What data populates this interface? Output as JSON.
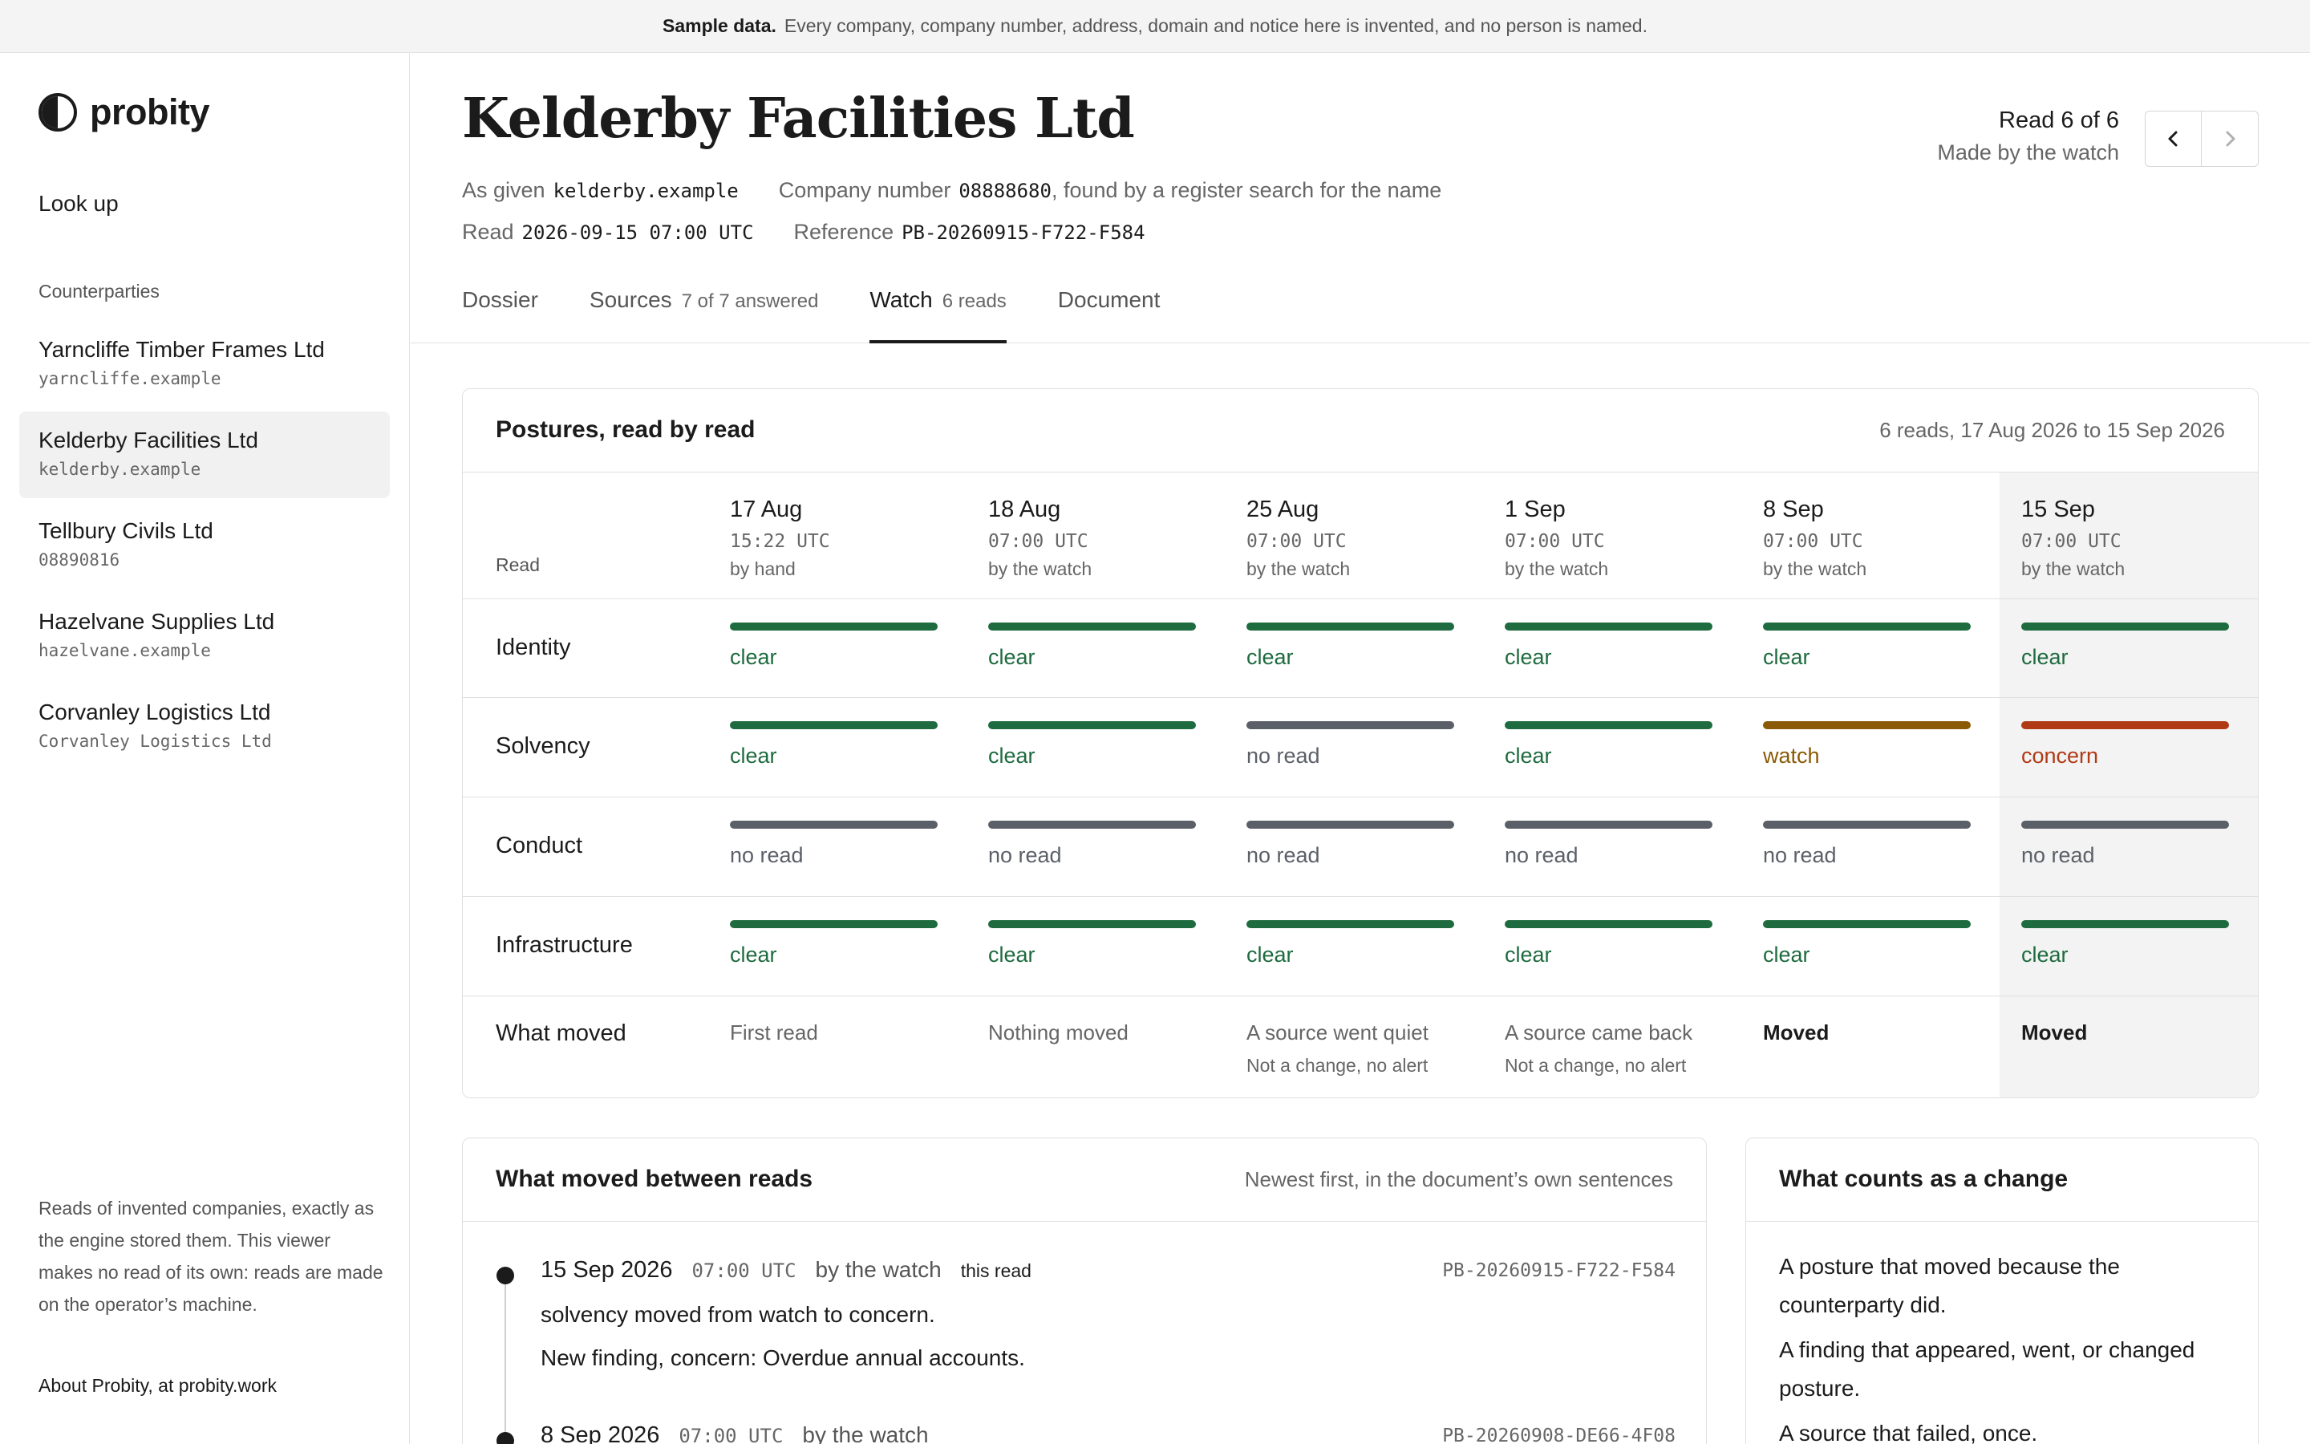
{
  "banner": {
    "label": "Sample data.",
    "text": "Every company, company number, address, domain and notice here is invented, and no person is named."
  },
  "sidebar": {
    "logo_text": "probity",
    "lookup_label": "Look up",
    "counterparties_heading": "Counterparties",
    "counterparties": [
      {
        "name": "Yarncliffe Timber Frames Ltd",
        "sub": "yarncliffe.example",
        "active": false
      },
      {
        "name": "Kelderby Facilities Ltd",
        "sub": "kelderby.example",
        "active": true
      },
      {
        "name": "Tellbury Civils Ltd",
        "sub": "08890816",
        "active": false
      },
      {
        "name": "Hazelvane Supplies Ltd",
        "sub": "hazelvane.example",
        "active": false
      },
      {
        "name": "Corvanley Logistics Ltd",
        "sub": "Corvanley Logistics Ltd",
        "active": false
      }
    ],
    "note": "Reads of invented companies, exactly as the engine stored them. This viewer makes no read of its own: reads are made on the operator’s machine.",
    "about_link": "About Probity, at probity.work"
  },
  "header": {
    "title": "Kelderby Facilities Ltd",
    "as_given_label": "As given",
    "as_given_value": "kelderby.example",
    "company_number_label": "Company number",
    "company_number_value": "08888680",
    "company_number_note": ", found by a register search for the name",
    "read_label": "Read",
    "read_value": "2026-09-15 07:00 UTC",
    "reference_label": "Reference",
    "reference_value": "PB-20260915-F722-F584",
    "read_status": "Read 6 of 6",
    "made_by": "Made by the watch",
    "prev_icon": "chevron-left-icon",
    "next_icon": "chevron-right-icon"
  },
  "tabs": [
    {
      "label": "Dossier",
      "count": "",
      "active": false
    },
    {
      "label": "Sources",
      "count": "7 of 7 answered",
      "active": false
    },
    {
      "label": "Watch",
      "count": "6 reads",
      "active": true
    },
    {
      "label": "Document",
      "count": "",
      "active": false
    }
  ],
  "postures": {
    "title": "Postures, read by read",
    "range": "6 reads, 17 Aug 2026 to 15 Sep 2026",
    "read_row_label": "Read",
    "reads": [
      {
        "date": "17 Aug",
        "time": "15:22 UTC",
        "by": "by hand"
      },
      {
        "date": "18 Aug",
        "time": "07:00 UTC",
        "by": "by the watch"
      },
      {
        "date": "25 Aug",
        "time": "07:00 UTC",
        "by": "by the watch"
      },
      {
        "date": "1 Sep",
        "time": "07:00 UTC",
        "by": "by the watch"
      },
      {
        "date": "8 Sep",
        "time": "07:00 UTC",
        "by": "by the watch"
      },
      {
        "date": "15 Sep",
        "time": "07:00 UTC",
        "by": "by the watch"
      }
    ],
    "status_colors": {
      "clear": "#1e6b3f",
      "no read": "#5b5f68",
      "watch": "#8a5a06",
      "concern": "#b03a16"
    },
    "rows": [
      {
        "label": "Identity",
        "values": [
          "clear",
          "clear",
          "clear",
          "clear",
          "clear",
          "clear"
        ]
      },
      {
        "label": "Solvency",
        "values": [
          "clear",
          "clear",
          "no read",
          "clear",
          "watch",
          "concern"
        ]
      },
      {
        "label": "Conduct",
        "values": [
          "no read",
          "no read",
          "no read",
          "no read",
          "no read",
          "no read"
        ]
      },
      {
        "label": "Infrastructure",
        "values": [
          "clear",
          "clear",
          "clear",
          "clear",
          "clear",
          "clear"
        ]
      }
    ],
    "moved_row_label": "What moved",
    "moved": [
      {
        "main": "First read",
        "sub": "",
        "strong": false
      },
      {
        "main": "Nothing moved",
        "sub": "",
        "strong": false
      },
      {
        "main": "A source went quiet",
        "sub": "Not a change, no alert",
        "strong": false
      },
      {
        "main": "A source came back",
        "sub": "Not a change, no alert",
        "strong": false
      },
      {
        "main": "Moved",
        "sub": "",
        "strong": true
      },
      {
        "main": "Moved",
        "sub": "",
        "strong": true
      }
    ]
  },
  "moved_between": {
    "title": "What moved between reads",
    "subtitle": "Newest first, in the document’s own sentences",
    "entries": [
      {
        "date": "15 Sep 2026",
        "time": "07:00 UTC",
        "by": "by the watch",
        "tag": "this read",
        "ref": "PB-20260915-F722-F584",
        "line1": "solvency moved from watch to concern.",
        "line2": "New finding, concern: Overdue annual accounts."
      },
      {
        "date": "8 Sep 2026",
        "time": "07:00 UTC",
        "by": "by the watch",
        "tag": "",
        "ref": "PB-20260908-DE66-4F08",
        "line1": "",
        "line2": ""
      }
    ]
  },
  "counts": {
    "title": "What counts as a change",
    "items": [
      "A posture that moved because the counterparty did.",
      "A finding that appeared, went, or changed posture.",
      "A source that failed, once."
    ]
  }
}
